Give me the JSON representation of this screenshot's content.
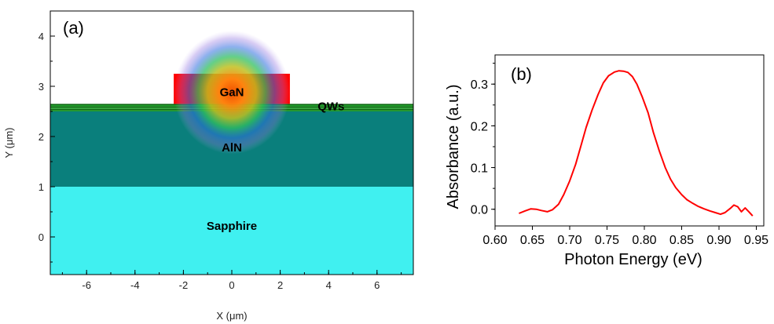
{
  "chart_data": [
    {
      "type": "diagram",
      "panel_label": "(a)",
      "xlabel": "X (μm)",
      "ylabel": "Y (μm)",
      "xlim": [
        -7.5,
        7.5
      ],
      "ylim": [
        -0.75,
        4.5
      ],
      "xticks": [
        -6,
        -4,
        -2,
        0,
        2,
        4,
        6
      ],
      "yticks": [
        0,
        1,
        2,
        3,
        4
      ],
      "colors": {
        "sapphire": "#40f0f0",
        "aln": "#0a7f7c",
        "qws": "#1f9e2a",
        "gan_ridge": "#ff0000",
        "mode_center": "#f05000"
      },
      "layers": [
        {
          "name": "Sapphire",
          "y_from": -0.75,
          "y_to": 1.0
        },
        {
          "name": "AlN",
          "y_from": 1.0,
          "y_to": 2.5
        },
        {
          "name": "QWs",
          "y_from": 2.5,
          "y_to": 2.65
        },
        {
          "name": "GaN",
          "x_from": -2.4,
          "x_to": 2.4,
          "y_from": 2.65,
          "y_to": 3.25
        }
      ],
      "labels": [
        {
          "text": "GaN",
          "x": 0.0,
          "y": 2.88
        },
        {
          "text": "QWs",
          "x": 4.1,
          "y": 2.6
        },
        {
          "text": "AlN",
          "x": 0.0,
          "y": 1.78
        },
        {
          "text": "Sapphire",
          "x": 0.0,
          "y": 0.22
        }
      ]
    },
    {
      "type": "line",
      "panel_label": "(b)",
      "xlabel": "Photon Energy (eV)",
      "ylabel": "Absorbance (a.u.)",
      "xlim": [
        0.6,
        0.96
      ],
      "ylim": [
        -0.04,
        0.37
      ],
      "xticks": [
        "0.60",
        "0.65",
        "0.70",
        "0.75",
        "0.80",
        "0.85",
        "0.90",
        "0.95"
      ],
      "yticks": [
        "0.0",
        "0.1",
        "0.2",
        "0.3"
      ],
      "color": "#ff0000",
      "x": [
        0.632,
        0.64,
        0.648,
        0.655,
        0.662,
        0.67,
        0.677,
        0.685,
        0.692,
        0.7,
        0.708,
        0.715,
        0.722,
        0.73,
        0.738,
        0.745,
        0.752,
        0.76,
        0.766,
        0.772,
        0.778,
        0.784,
        0.79,
        0.797,
        0.805,
        0.812,
        0.82,
        0.828,
        0.835,
        0.842,
        0.85,
        0.857,
        0.865,
        0.872,
        0.88,
        0.888,
        0.895,
        0.902,
        0.908,
        0.915,
        0.92,
        0.925,
        0.93,
        0.935,
        0.94,
        0.945
      ],
      "y": [
        -0.01,
        -0.004,
        0.001,
        0.0,
        -0.003,
        -0.006,
        -0.001,
        0.012,
        0.035,
        0.068,
        0.108,
        0.152,
        0.196,
        0.238,
        0.275,
        0.303,
        0.32,
        0.329,
        0.332,
        0.331,
        0.328,
        0.318,
        0.3,
        0.27,
        0.231,
        0.185,
        0.14,
        0.1,
        0.072,
        0.052,
        0.035,
        0.023,
        0.014,
        0.007,
        0.001,
        -0.004,
        -0.008,
        -0.012,
        -0.008,
        0.002,
        0.01,
        0.006,
        -0.006,
        0.003,
        -0.006,
        -0.016
      ]
    }
  ]
}
